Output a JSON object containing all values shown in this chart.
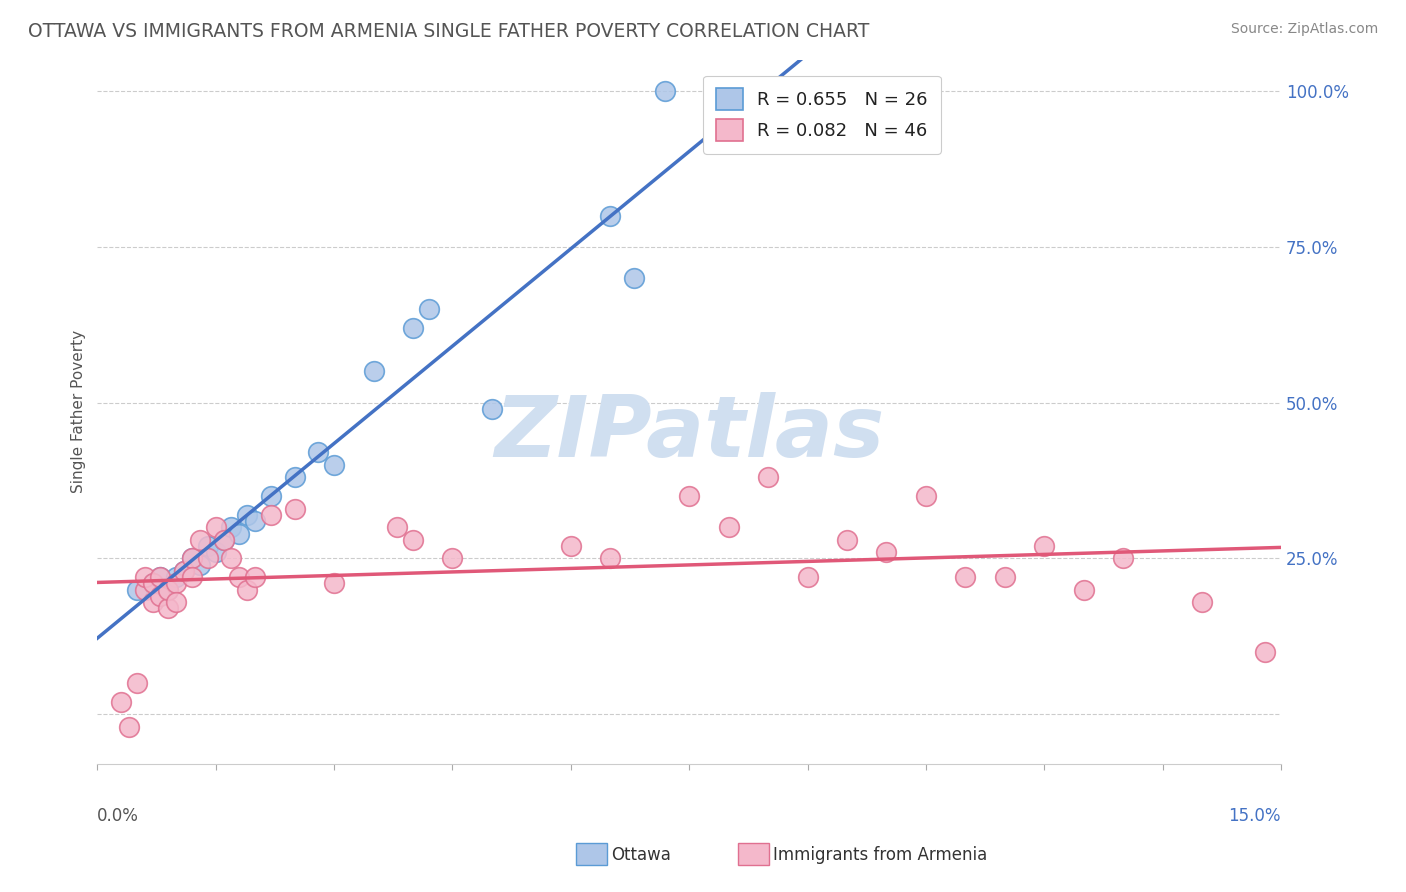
{
  "title": "OTTAWA VS IMMIGRANTS FROM ARMENIA SINGLE FATHER POVERTY CORRELATION CHART",
  "source": "Source: ZipAtlas.com",
  "ylabel": "Single Father Poverty",
  "xlim": [
    0.0,
    0.15
  ],
  "ylim": [
    -0.08,
    1.05
  ],
  "ottawa_R": 0.655,
  "ottawa_N": 26,
  "armenia_R": 0.082,
  "armenia_N": 46,
  "ottawa_color": "#aec6e8",
  "ottawa_edge_color": "#5b9bd5",
  "armenia_color": "#f4b8cb",
  "armenia_edge_color": "#e07090",
  "ottawa_line_color": "#4472c4",
  "armenia_line_color": "#e05878",
  "watermark_color": "#d0dff0",
  "watermark_text": "ZIPatlas",
  "background_color": "#ffffff",
  "grid_color": "#cccccc",
  "ytick_color": "#4472c4",
  "xlabel_color_left": "#555555",
  "xlabel_color_right": "#4472c4",
  "title_color": "#555555",
  "source_color": "#888888",
  "ylabel_color": "#555555",
  "ottawa_x": [
    0.005,
    0.007,
    0.008,
    0.009,
    0.01,
    0.011,
    0.012,
    0.013,
    0.014,
    0.015,
    0.016,
    0.017,
    0.018,
    0.019,
    0.02,
    0.022,
    0.025,
    0.028,
    0.03,
    0.035,
    0.04,
    0.042,
    0.05,
    0.065,
    0.068,
    0.072
  ],
  "ottawa_y": [
    0.2,
    0.21,
    0.22,
    0.2,
    0.22,
    0.23,
    0.25,
    0.24,
    0.27,
    0.26,
    0.28,
    0.3,
    0.29,
    0.32,
    0.31,
    0.35,
    0.38,
    0.42,
    0.4,
    0.55,
    0.62,
    0.65,
    0.49,
    0.8,
    0.7,
    1.0
  ],
  "armenia_x": [
    0.003,
    0.004,
    0.005,
    0.006,
    0.006,
    0.007,
    0.007,
    0.008,
    0.008,
    0.009,
    0.009,
    0.01,
    0.01,
    0.011,
    0.012,
    0.012,
    0.013,
    0.014,
    0.015,
    0.016,
    0.017,
    0.018,
    0.019,
    0.02,
    0.022,
    0.025,
    0.03,
    0.038,
    0.04,
    0.045,
    0.06,
    0.065,
    0.075,
    0.08,
    0.09,
    0.095,
    0.1,
    0.105,
    0.11,
    0.12,
    0.125,
    0.13,
    0.14,
    0.148,
    0.085,
    0.115
  ],
  "armenia_y": [
    0.02,
    -0.02,
    0.05,
    0.2,
    0.22,
    0.18,
    0.21,
    0.19,
    0.22,
    0.17,
    0.2,
    0.21,
    0.18,
    0.23,
    0.25,
    0.22,
    0.28,
    0.25,
    0.3,
    0.28,
    0.25,
    0.22,
    0.2,
    0.22,
    0.32,
    0.33,
    0.21,
    0.3,
    0.28,
    0.25,
    0.27,
    0.25,
    0.35,
    0.3,
    0.22,
    0.28,
    0.26,
    0.35,
    0.22,
    0.27,
    0.2,
    0.25,
    0.18,
    0.1,
    0.38,
    0.22
  ],
  "yticks": [
    0.0,
    0.25,
    0.5,
    0.75,
    1.0
  ],
  "ytick_labels": [
    "",
    "25.0%",
    "50.0%",
    "75.0%",
    "100.0%"
  ],
  "xtick_positions": [
    0.0,
    0.015,
    0.03,
    0.045,
    0.06,
    0.075,
    0.09,
    0.105,
    0.12,
    0.135,
    0.15
  ]
}
